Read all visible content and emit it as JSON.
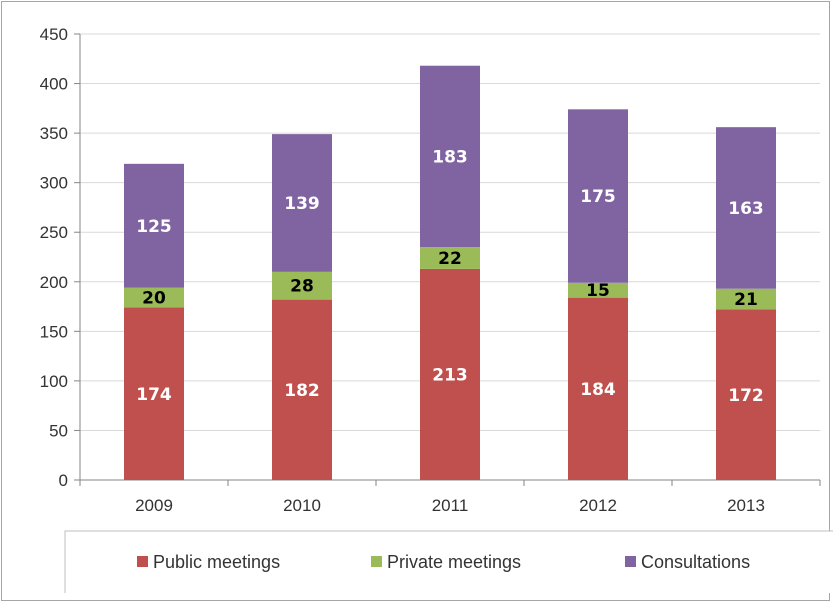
{
  "chart_data": {
    "type": "bar",
    "stacked": true,
    "categories": [
      "2009",
      "2010",
      "2011",
      "2012",
      "2013"
    ],
    "series": [
      {
        "name": "Public meetings",
        "color": "#c0504d",
        "label_color": "#ffffff",
        "values": [
          174,
          182,
          213,
          184,
          172
        ]
      },
      {
        "name": "Private meetings",
        "color": "#9bbb59",
        "label_color": "#000000",
        "values": [
          20,
          28,
          22,
          15,
          21
        ]
      },
      {
        "name": "Consultations",
        "color": "#8064a2",
        "label_color": "#ffffff",
        "values": [
          125,
          139,
          183,
          175,
          163
        ]
      }
    ],
    "y_ticks": [
      "0",
      "50",
      "100",
      "150",
      "200",
      "250",
      "300",
      "350",
      "400",
      "450"
    ],
    "ylim": [
      0,
      450
    ],
    "grid": true,
    "legend_position": "bottom",
    "title": "",
    "xlabel": "",
    "ylabel": ""
  }
}
